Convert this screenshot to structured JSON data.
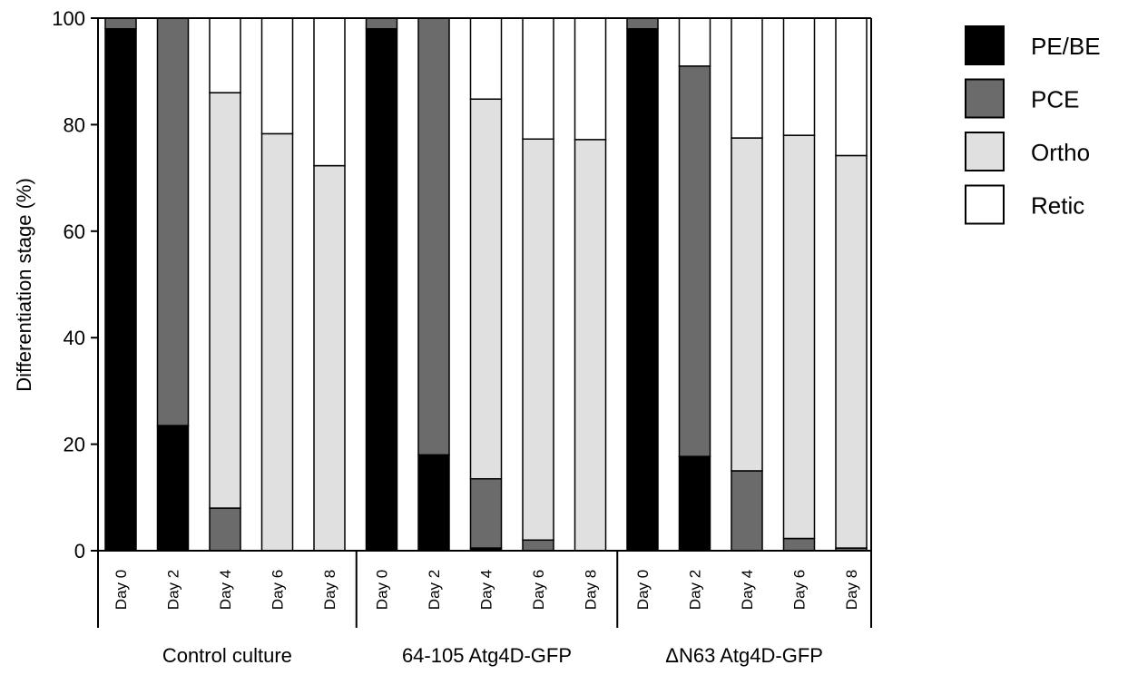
{
  "chart_data": {
    "type": "bar",
    "stacked": true,
    "ylabel": "Differentiation stage (%)",
    "ylim": [
      0,
      100
    ],
    "yticks": [
      0,
      20,
      40,
      60,
      80,
      100
    ],
    "grid": false,
    "legend_position": "right",
    "groups": [
      {
        "label": "Control culture",
        "categories": [
          "Day 0",
          "Day 2",
          "Day 4",
          "Day 6",
          "Day 8"
        ]
      },
      {
        "label": "64-105 Atg4D-GFP",
        "categories": [
          "Day 0",
          "Day 2",
          "Day 4",
          "Day 6",
          "Day 8"
        ]
      },
      {
        "label": "ΔN63 Atg4D-GFP",
        "categories": [
          "Day 0",
          "Day 2",
          "Day 4",
          "Day 6",
          "Day 8"
        ]
      }
    ],
    "series": [
      {
        "name": "PE/BE",
        "color": "#000000",
        "values": [
          98,
          23.5,
          0,
          0,
          0,
          98,
          18,
          0.5,
          0,
          0,
          98,
          17.7,
          0,
          0,
          0
        ]
      },
      {
        "name": "PCE",
        "color": "#6b6b6b",
        "values": [
          2,
          76.5,
          8,
          0,
          0,
          2,
          82,
          13,
          2,
          0,
          2,
          73.3,
          15,
          2.3,
          0.5
        ]
      },
      {
        "name": "Ortho",
        "color": "#e0e0e0",
        "values": [
          0,
          0,
          78,
          78.3,
          72.3,
          0,
          0,
          71.3,
          75.3,
          77.2,
          0,
          0,
          62.5,
          75.7,
          73.7
        ]
      },
      {
        "name": "Retic",
        "color": "#ffffff",
        "values": [
          0,
          0,
          14,
          21.7,
          27.7,
          0,
          0,
          15.2,
          22.7,
          22.8,
          0,
          9,
          22.5,
          22,
          25.8
        ]
      }
    ]
  }
}
